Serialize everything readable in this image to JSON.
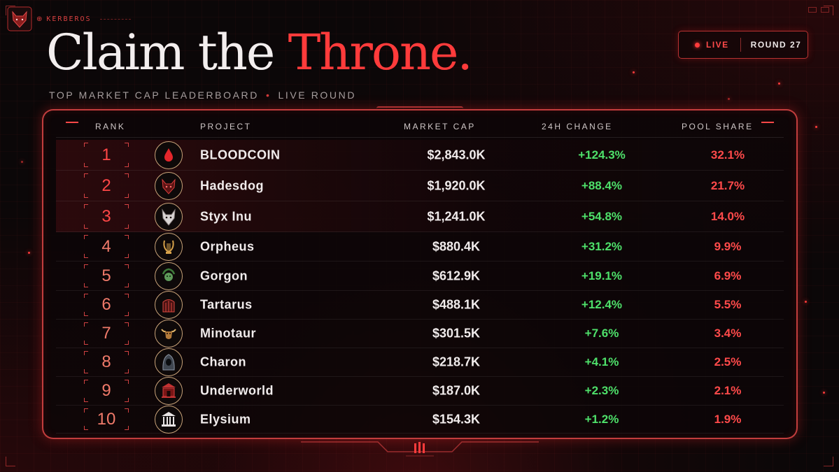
{
  "brand": {
    "name": "KERBEROS"
  },
  "title": {
    "main": "Claim the ",
    "accent": "Throne."
  },
  "subtitle": {
    "left": "TOP MARKET CAP LEADERBOARD",
    "sep": "•",
    "right": "LIVE ROUND"
  },
  "status": {
    "live_label": "LIVE",
    "round_label": "ROUND 27"
  },
  "colors": {
    "accent": "#ff3b3b",
    "positive": "#4ee06a",
    "share": "#ff4a4a",
    "background": "#0b0708"
  },
  "table": {
    "headers": {
      "rank": "RANK",
      "project": "PROJECT",
      "market_cap": "MARKET CAP",
      "change": "24H CHANGE",
      "pool_share": "POOL SHARE"
    },
    "rows": [
      {
        "rank": "1",
        "icon": "blood-drop-icon",
        "project": "BLOODCOIN",
        "market_cap": "$2,843.0K",
        "change": "+124.3%",
        "share": "32.1%"
      },
      {
        "rank": "2",
        "icon": "wolf-icon",
        "project": "Hadesdog",
        "market_cap": "$1,920.0K",
        "change": "+88.4%",
        "share": "21.7%"
      },
      {
        "rank": "3",
        "icon": "white-wolf-icon",
        "project": "Styx Inu",
        "market_cap": "$1,241.0K",
        "change": "+54.8%",
        "share": "14.0%"
      },
      {
        "rank": "4",
        "icon": "lyre-icon",
        "project": "Orpheus",
        "market_cap": "$880.4K",
        "change": "+31.2%",
        "share": "9.9%"
      },
      {
        "rank": "5",
        "icon": "medusa-icon",
        "project": "Gorgon",
        "market_cap": "$612.9K",
        "change": "+19.1%",
        "share": "6.9%"
      },
      {
        "rank": "6",
        "icon": "gate-icon",
        "project": "Tartarus",
        "market_cap": "$488.1K",
        "change": "+12.4%",
        "share": "5.5%"
      },
      {
        "rank": "7",
        "icon": "bull-icon",
        "project": "Minotaur",
        "market_cap": "$301.5K",
        "change": "+7.6%",
        "share": "3.4%"
      },
      {
        "rank": "8",
        "icon": "hooded-figure-icon",
        "project": "Charon",
        "market_cap": "$218.7K",
        "change": "+4.1%",
        "share": "2.5%"
      },
      {
        "rank": "9",
        "icon": "temple-red-icon",
        "project": "Underworld",
        "market_cap": "$187.0K",
        "change": "+2.3%",
        "share": "2.1%"
      },
      {
        "rank": "10",
        "icon": "temple-white-icon",
        "project": "Elysium",
        "market_cap": "$154.3K",
        "change": "+1.2%",
        "share": "1.9%"
      }
    ]
  }
}
